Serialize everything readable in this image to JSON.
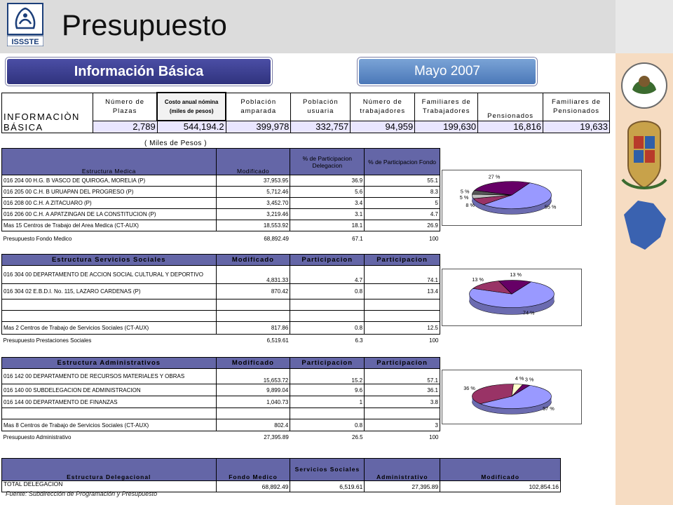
{
  "header": {
    "title": "Presupuesto",
    "logo_text": "ISSSTE"
  },
  "pills": {
    "basic_info": "Información Básica",
    "date": "Mayo 2007"
  },
  "colors": {
    "header_bg": "#dcdcdc",
    "table_header": "#6466a7",
    "summary_values_bg": "#e9e6ff",
    "right_bar": "#f6dcc2"
  },
  "summary": {
    "row_label": "INFORMACIÒN BÁSICA",
    "headers": [
      "Número de Plazas",
      "Costo anual nómina (miles de pesos)",
      "Población amparada",
      "Población usuaria",
      "Número de trabajadores",
      "Familiares de Trabajadores",
      "Pensionados",
      "Familiares de Pensionados"
    ],
    "values": [
      "2,789",
      "544,194.2",
      "399,978",
      "332,757",
      "94,959",
      "199,630",
      "16,816",
      "19,633"
    ]
  },
  "medical": {
    "units": "( Miles de Pesos )",
    "headers": [
      "Estructura Medica",
      "Modificado",
      "% de Participacion Delegacion",
      "% de Participacion Fondo"
    ],
    "rows": [
      [
        "016 204 00 H.G. B VASCO DE QUIROGA, MORELIA (P)",
        "37,953.95",
        "36.9",
        "55.1"
      ],
      [
        "016 205 00 C.H. B URUAPAN DEL PROGRESO (P)",
        "5,712.46",
        "5.6",
        "8.3"
      ],
      [
        "016 208 00 C.H. A ZITACUARO (P)",
        "3,452.70",
        "3.4",
        "5"
      ],
      [
        "016 206 00 C.H. A APATZINGAN DE LA CONSTITUCION (P)",
        "3,219.46",
        "3.1",
        "4.7"
      ],
      [
        "Mas 15 Centros de Trabajo del Area Medica (CT-AUX)",
        "18,553.92",
        "18.1",
        "26.9"
      ]
    ],
    "total": [
      "Presupuesto Fondo Medico",
      "68,892.49",
      "67.1",
      "100"
    ]
  },
  "social": {
    "headers": [
      "Estructura Servicios Sociales",
      "Modificado",
      "Participacion",
      "Participacion"
    ],
    "rows": [
      [
        "016 304 00 DEPARTAMENTO DE ACCION SOCIAL CULTURAL Y DEPORTIVO",
        "4,831.33",
        "4.7",
        "74.1"
      ],
      [
        "016 304 02 E.B.D.I. No. 115, LAZARO CARDENAS (P)",
        "870.42",
        "0.8",
        "13.4"
      ],
      [
        "",
        "",
        "",
        ""
      ],
      [
        "",
        "",
        "",
        ""
      ],
      [
        "Mas 2 Centros de Trabajo de Servicios Sociales (CT-AUX)",
        "817.86",
        "0.8",
        "12.5"
      ]
    ],
    "total": [
      "Presupuesto Prestaciones Sociales",
      "6,519.61",
      "6.3",
      "100"
    ]
  },
  "admin": {
    "headers": [
      "Estructura Administrativos",
      "Modificado",
      "Participacion",
      "Participacion"
    ],
    "rows": [
      [
        "016 142 00 DEPARTAMENTO DE RECURSOS MATERIALES Y OBRAS",
        "15,653.72",
        "15.2",
        "57.1"
      ],
      [
        "016 140 00 SUBDELEGACION DE ADMINISTRACION",
        "9,899.04",
        "9.6",
        "36.1"
      ],
      [
        "016 144 00 DEPARTAMENTO DE FINANZAS",
        "1,040.73",
        "1",
        "3.8"
      ],
      [
        "",
        "",
        "",
        ""
      ],
      [
        "Mas 8 Centros de Trabajo de Servicios Sociales (CT-AUX)",
        "802.4",
        "0.8",
        "3"
      ]
    ],
    "total": [
      "Presupuesto Administrativo",
      "27,395.89",
      "26.5",
      "100"
    ]
  },
  "delegation": {
    "headers": [
      "Estructura Delegacional",
      "Fondo Medico",
      "Servicios Sociales",
      "Administrativo",
      "Modificado"
    ],
    "row": [
      "TOTAL DELEGACION",
      "68,892.49",
      "6,519.61",
      "27,395.89",
      "102,854.16"
    ]
  },
  "source": "Fuente: Subdirección de Programación y Presupuesto",
  "chart_data": [
    {
      "type": "pie",
      "values": [
        55.1,
        8.3,
        5,
        4.7,
        26.9
      ],
      "labels": [
        "55 %",
        "8 %",
        "5 %",
        "5 %",
        "27 %"
      ],
      "colors": [
        "#9999ff",
        "#993366",
        "#c0c0c0",
        "#555555",
        "#660066"
      ]
    },
    {
      "type": "pie",
      "values": [
        74.1,
        13.4,
        12.5
      ],
      "labels": [
        "74 %",
        "13 %",
        "13 %"
      ],
      "colors": [
        "#9999ff",
        "#993366",
        "#660066"
      ]
    },
    {
      "type": "pie",
      "values": [
        57.1,
        36.1,
        3.8,
        3
      ],
      "labels": [
        "57 %",
        "36 %",
        "4 %",
        "3 %"
      ],
      "colors": [
        "#9999ff",
        "#993366",
        "#ffffcc",
        "#660066"
      ]
    }
  ]
}
